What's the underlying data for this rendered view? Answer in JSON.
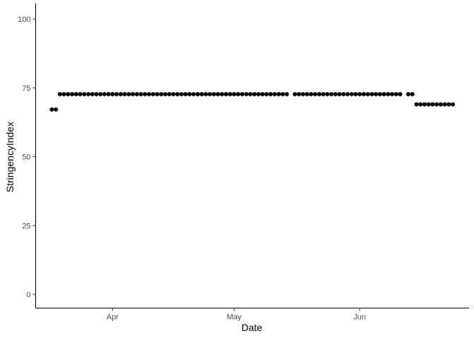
{
  "chart_data": {
    "type": "scatter",
    "title": "",
    "xlabel": "Date",
    "ylabel": "StringencyIndex",
    "x_scale": "date",
    "xlim": [
      "2020-03-13",
      "2020-06-28"
    ],
    "ylim": [
      0,
      100
    ],
    "x_ticks": [
      {
        "date": "2020-04-01",
        "label": "Apr"
      },
      {
        "date": "2020-05-01",
        "label": "May"
      },
      {
        "date": "2020-06-01",
        "label": "Jun"
      }
    ],
    "y_ticks": [
      0,
      25,
      50,
      75,
      100
    ],
    "grid": false,
    "legend": "none",
    "point_color": "#000000",
    "x": [
      "2020-03-17",
      "2020-03-18",
      "2020-03-19",
      "2020-03-20",
      "2020-03-21",
      "2020-03-22",
      "2020-03-23",
      "2020-03-24",
      "2020-03-25",
      "2020-03-26",
      "2020-03-27",
      "2020-03-28",
      "2020-03-29",
      "2020-03-30",
      "2020-03-31",
      "2020-04-01",
      "2020-04-02",
      "2020-04-03",
      "2020-04-04",
      "2020-04-05",
      "2020-04-06",
      "2020-04-07",
      "2020-04-08",
      "2020-04-09",
      "2020-04-10",
      "2020-04-11",
      "2020-04-12",
      "2020-04-13",
      "2020-04-14",
      "2020-04-15",
      "2020-04-16",
      "2020-04-17",
      "2020-04-18",
      "2020-04-19",
      "2020-04-20",
      "2020-04-21",
      "2020-04-22",
      "2020-04-23",
      "2020-04-24",
      "2020-04-25",
      "2020-04-26",
      "2020-04-27",
      "2020-04-28",
      "2020-04-29",
      "2020-04-30",
      "2020-05-01",
      "2020-05-02",
      "2020-05-03",
      "2020-05-04",
      "2020-05-05",
      "2020-05-06",
      "2020-05-07",
      "2020-05-08",
      "2020-05-09",
      "2020-05-10",
      "2020-05-11",
      "2020-05-12",
      "2020-05-13",
      "2020-05-14",
      "2020-05-16",
      "2020-05-17",
      "2020-05-18",
      "2020-05-19",
      "2020-05-20",
      "2020-05-21",
      "2020-05-22",
      "2020-05-23",
      "2020-05-24",
      "2020-05-25",
      "2020-05-26",
      "2020-05-27",
      "2020-05-28",
      "2020-05-29",
      "2020-05-30",
      "2020-05-31",
      "2020-06-01",
      "2020-06-02",
      "2020-06-03",
      "2020-06-04",
      "2020-06-05",
      "2020-06-06",
      "2020-06-07",
      "2020-06-08",
      "2020-06-09",
      "2020-06-10",
      "2020-06-11",
      "2020-06-13",
      "2020-06-14",
      "2020-06-15",
      "2020-06-16",
      "2020-06-17",
      "2020-06-18",
      "2020-06-19",
      "2020-06-20",
      "2020-06-21",
      "2020-06-22",
      "2020-06-23",
      "2020-06-24"
    ],
    "y": [
      67.13,
      67.13,
      72.69,
      72.69,
      72.69,
      72.69,
      72.69,
      72.69,
      72.69,
      72.69,
      72.69,
      72.69,
      72.69,
      72.69,
      72.69,
      72.69,
      72.69,
      72.69,
      72.69,
      72.69,
      72.69,
      72.69,
      72.69,
      72.69,
      72.69,
      72.69,
      72.69,
      72.69,
      72.69,
      72.69,
      72.69,
      72.69,
      72.69,
      72.69,
      72.69,
      72.69,
      72.69,
      72.69,
      72.69,
      72.69,
      72.69,
      72.69,
      72.69,
      72.69,
      72.69,
      72.69,
      72.69,
      72.69,
      72.69,
      72.69,
      72.69,
      72.69,
      72.69,
      72.69,
      72.69,
      72.69,
      72.69,
      72.69,
      72.69,
      72.69,
      72.69,
      72.69,
      72.69,
      72.69,
      72.69,
      72.69,
      72.69,
      72.69,
      72.69,
      72.69,
      72.69,
      72.69,
      72.69,
      72.69,
      72.69,
      72.69,
      72.69,
      72.69,
      72.69,
      72.69,
      72.69,
      72.69,
      72.69,
      72.69,
      72.69,
      72.69,
      72.69,
      72.69,
      68.98,
      68.98,
      68.98,
      68.98,
      68.98,
      68.98,
      68.98,
      68.98,
      68.98,
      68.98
    ]
  }
}
